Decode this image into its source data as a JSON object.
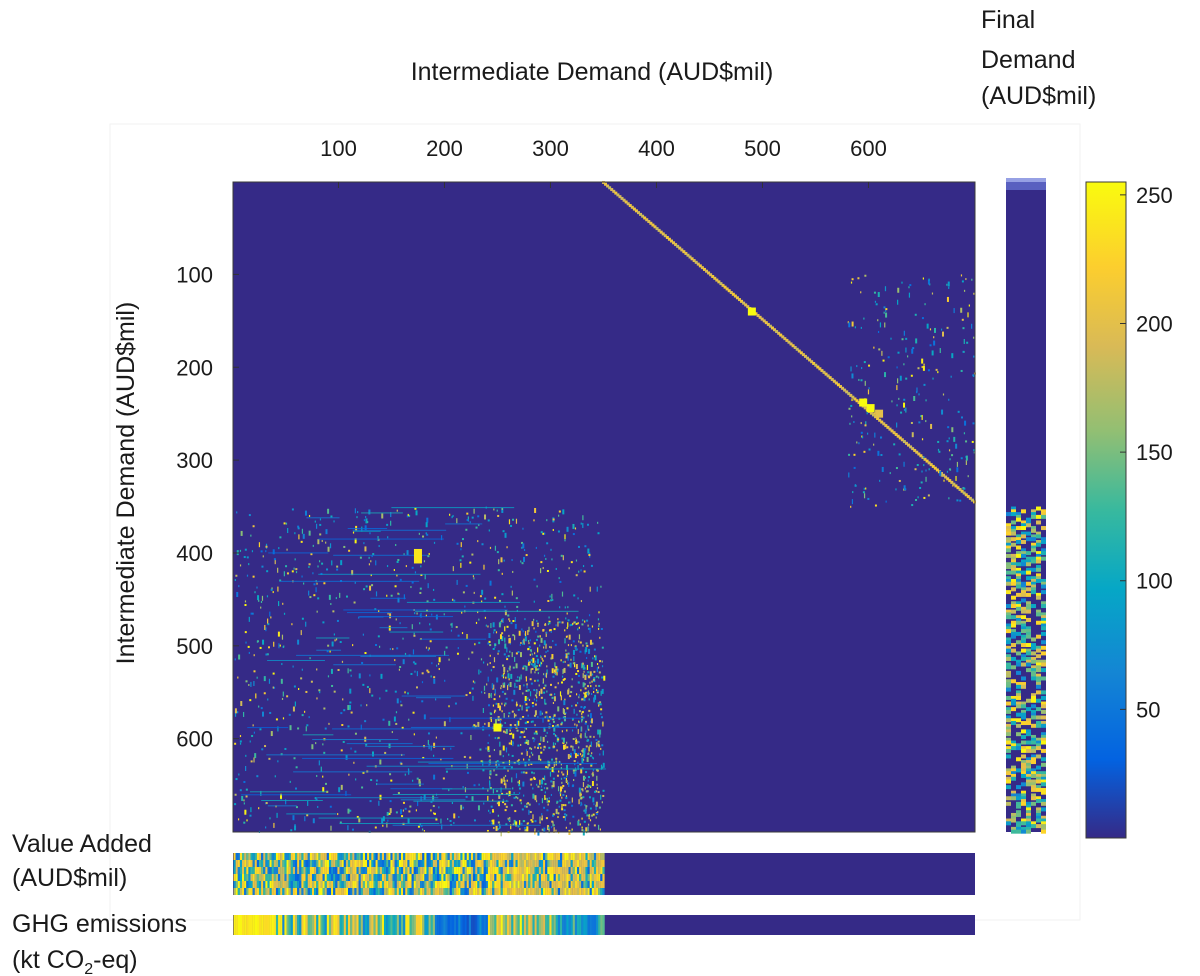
{
  "chart_data": {
    "type": "heatmap",
    "main_matrix": {
      "xlabel": "Intermediate Demand (AUD$mil)",
      "ylabel": "Intermediate Demand (AUD$mil)",
      "xlim": [
        1,
        700
      ],
      "ylim": [
        1,
        700
      ],
      "x_ticks": [
        100,
        200,
        300,
        400,
        500,
        600
      ],
      "y_ticks": [
        100,
        200,
        300,
        400,
        500,
        600
      ],
      "background_value": 0,
      "diagonal_segment": {
        "from": [
          350,
          1
        ],
        "to": [
          700,
          345
        ],
        "value": 220
      },
      "hotspots": [
        {
          "x": 490,
          "y": 140,
          "value": 255
        },
        {
          "x": 595,
          "y": 238,
          "value": 255
        },
        {
          "x": 602,
          "y": 244,
          "value": 255
        },
        {
          "x": 610,
          "y": 250,
          "value": 200
        },
        {
          "x": 250,
          "y": 588,
          "value": 255
        },
        {
          "x": 175,
          "y": 400,
          "value": 240
        },
        {
          "x": 175,
          "y": 407,
          "value": 240
        }
      ],
      "dense_blocks": [
        {
          "x": [
            1,
            350
          ],
          "y": [
            350,
            700
          ],
          "density": "medium"
        },
        {
          "x": [
            240,
            350
          ],
          "y": [
            470,
            700
          ],
          "density": "high"
        },
        {
          "x": [
            580,
            700
          ],
          "y": [
            100,
            350
          ],
          "density": "low"
        }
      ]
    },
    "final_demand": {
      "label_lines": [
        "Final",
        "Demand",
        "(AUD$mil)"
      ],
      "active_rows": [
        350,
        700
      ]
    },
    "value_added": {
      "label_lines": [
        "Value Added",
        "(AUD$mil)"
      ],
      "active_cols": [
        1,
        350
      ]
    },
    "ghg_emissions": {
      "label_line1": "GHG emissions",
      "label_line2_prefix": "(kt CO",
      "label_line2_sub": "2",
      "label_line2_suffix": "-eq)",
      "active_cols": [
        1,
        350
      ]
    },
    "colorbar": {
      "colormap": "parula",
      "range": [
        0,
        255
      ],
      "ticks": [
        50,
        100,
        150,
        200,
        250
      ]
    }
  }
}
